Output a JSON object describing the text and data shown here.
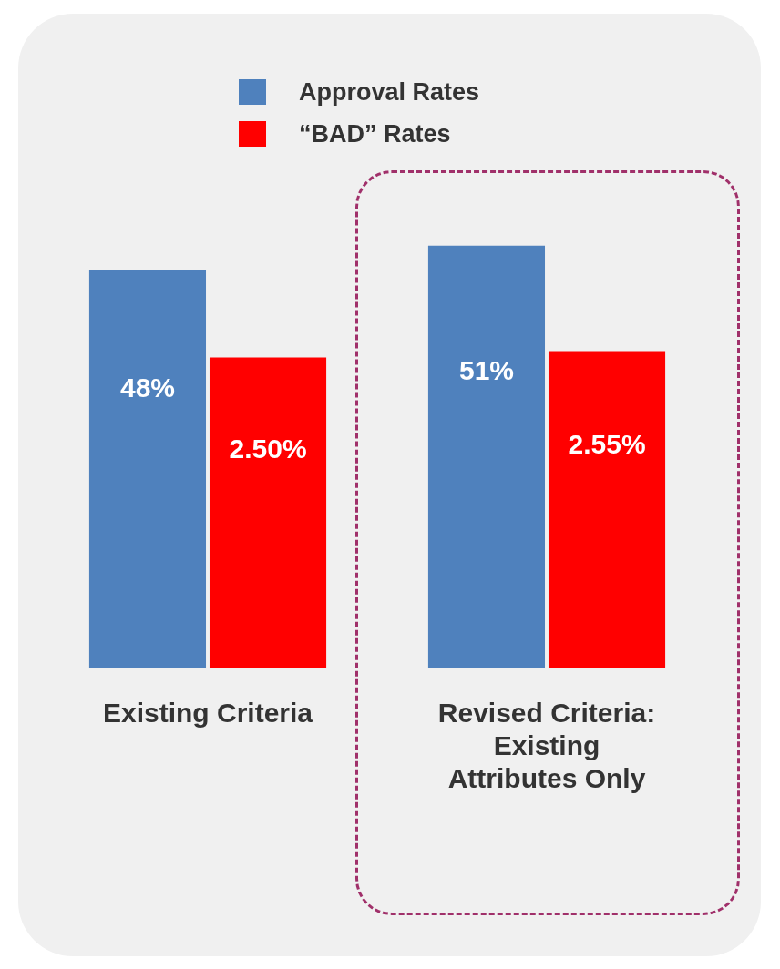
{
  "chart_data": {
    "type": "bar",
    "categories": [
      "Existing Criteria",
      "Revised Criteria: Existing Attributes Only"
    ],
    "series": [
      {
        "name": "Approval Rates",
        "color": "#4f81bd",
        "values": [
          48,
          51
        ],
        "value_labels": [
          "48%",
          "51%"
        ]
      },
      {
        "name": "“BAD” Rates",
        "color": "#ff0000",
        "values": [
          2.5,
          2.55
        ],
        "axis": "y2",
        "value_labels": [
          "2.50%",
          "2.55%"
        ]
      }
    ],
    "tick_labels": "x",
    "legend": "top",
    "data_labels": true,
    "grid": false
  }
}
